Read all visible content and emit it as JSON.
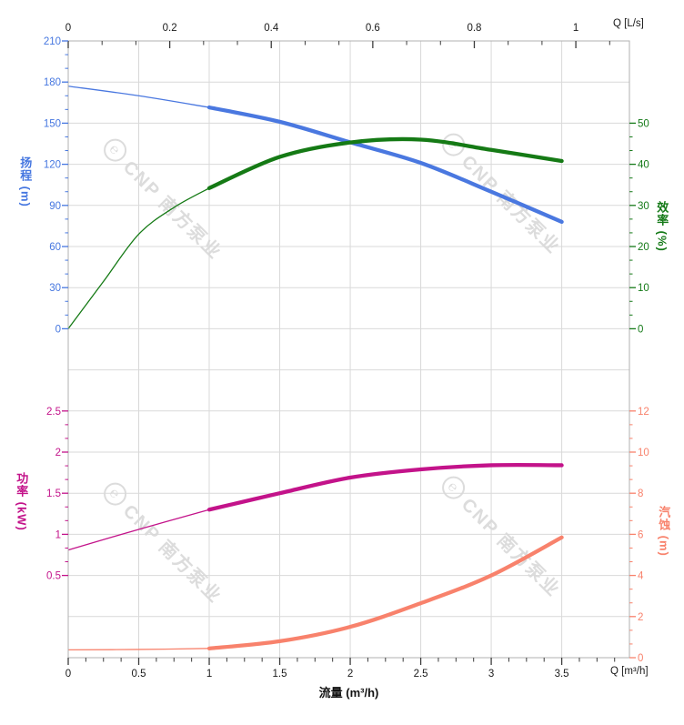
{
  "watermark": {
    "logo": "℮",
    "text": "CNP 南方泵业"
  },
  "chart_data": {
    "type": "line",
    "title": "",
    "grid": {
      "show": true,
      "color": "#d9d9d9",
      "border_color": "#b0b0b0",
      "tick_color": "#3c3c3c",
      "label_color": "#1a1a1a"
    },
    "x_bottom": {
      "title": "流量 (m³/h)",
      "corner_label": "Q [m³/h]",
      "min": 0,
      "max": 3.98,
      "majors": [
        0,
        0.5,
        1,
        1.5,
        2,
        2.5,
        3,
        3.5
      ],
      "minor_step": 0.125
    },
    "x_top": {
      "corner_label": "Q [L/s]",
      "min": 0,
      "max": 1,
      "majors": [
        0,
        0.2,
        0.4,
        0.6,
        0.8,
        1
      ],
      "minor_step": 0.0666667,
      "to_bottom_ratio": 3.6
    },
    "y_axes": [
      {
        "id": "head",
        "side": "left",
        "panel": "top",
        "title": "扬程 (m)",
        "color": "#4677e0",
        "majors": [
          0,
          30,
          60,
          90,
          120,
          150,
          180,
          210
        ],
        "minor_step": 10,
        "anchor_value": 210,
        "anchor_row": 0,
        "units_per_row": 30
      },
      {
        "id": "eff",
        "side": "right",
        "panel": "top",
        "title": "效率 (%)",
        "color": "#157a18",
        "majors": [
          0,
          10,
          20,
          30,
          40,
          50
        ],
        "minor_step": 3.33333,
        "anchor_value": 0,
        "anchor_row": 7,
        "units_per_row": 10
      },
      {
        "id": "power",
        "side": "left",
        "panel": "bottom",
        "title": "功率 (kW)",
        "color": "#c3138a",
        "majors": [
          0.5,
          1,
          1.5,
          2,
          2.5
        ],
        "minor_step": 0.1666667,
        "anchor_value": 2.5,
        "anchor_row": 9,
        "units_per_row": 0.5
      },
      {
        "id": "npsh",
        "side": "right",
        "panel": "bottom",
        "title": "汽蚀 (m)",
        "color": "#f8826c",
        "majors": [
          0,
          2,
          4,
          6,
          8,
          10,
          12
        ],
        "minor_step": 0.6666667,
        "anchor_value": 12,
        "anchor_row": 9,
        "units_per_row": 2
      }
    ],
    "series": [
      {
        "name": "head",
        "y_axis": "head",
        "color": "#4a78e0",
        "thin_until_q": 1,
        "points": [
          [
            0,
            177
          ],
          [
            0.5,
            170
          ],
          [
            1,
            161.5
          ],
          [
            1.5,
            151
          ],
          [
            2,
            136
          ],
          [
            2.5,
            121
          ],
          [
            3,
            100
          ],
          [
            3.5,
            78
          ]
        ]
      },
      {
        "name": "efficiency",
        "y_axis": "eff",
        "color": "#157a15",
        "thin_until_q": 1,
        "points": [
          [
            0,
            0
          ],
          [
            0.25,
            11.5
          ],
          [
            0.5,
            23
          ],
          [
            0.75,
            29.5
          ],
          [
            1,
            34.2
          ],
          [
            1.5,
            41.8
          ],
          [
            2,
            45.3
          ],
          [
            2.5,
            46
          ],
          [
            3,
            43.5
          ],
          [
            3.5,
            40.8
          ]
        ]
      },
      {
        "name": "power",
        "y_axis": "power",
        "color": "#c3138a",
        "thin_until_q": 1,
        "points": [
          [
            0,
            0.81
          ],
          [
            0.5,
            1.06
          ],
          [
            1,
            1.3
          ],
          [
            1.5,
            1.5
          ],
          [
            2,
            1.69
          ],
          [
            2.5,
            1.79
          ],
          [
            3,
            1.84
          ],
          [
            3.5,
            1.84
          ]
        ]
      },
      {
        "name": "npsh",
        "y_axis": "npsh",
        "color": "#f8826c",
        "thin_until_q": 1,
        "points": [
          [
            0,
            0.38
          ],
          [
            0.5,
            0.4
          ],
          [
            1,
            0.45
          ],
          [
            1.5,
            0.8
          ],
          [
            2,
            1.5
          ],
          [
            2.5,
            2.65
          ],
          [
            3,
            4.0
          ],
          [
            3.5,
            5.85
          ]
        ]
      }
    ]
  }
}
